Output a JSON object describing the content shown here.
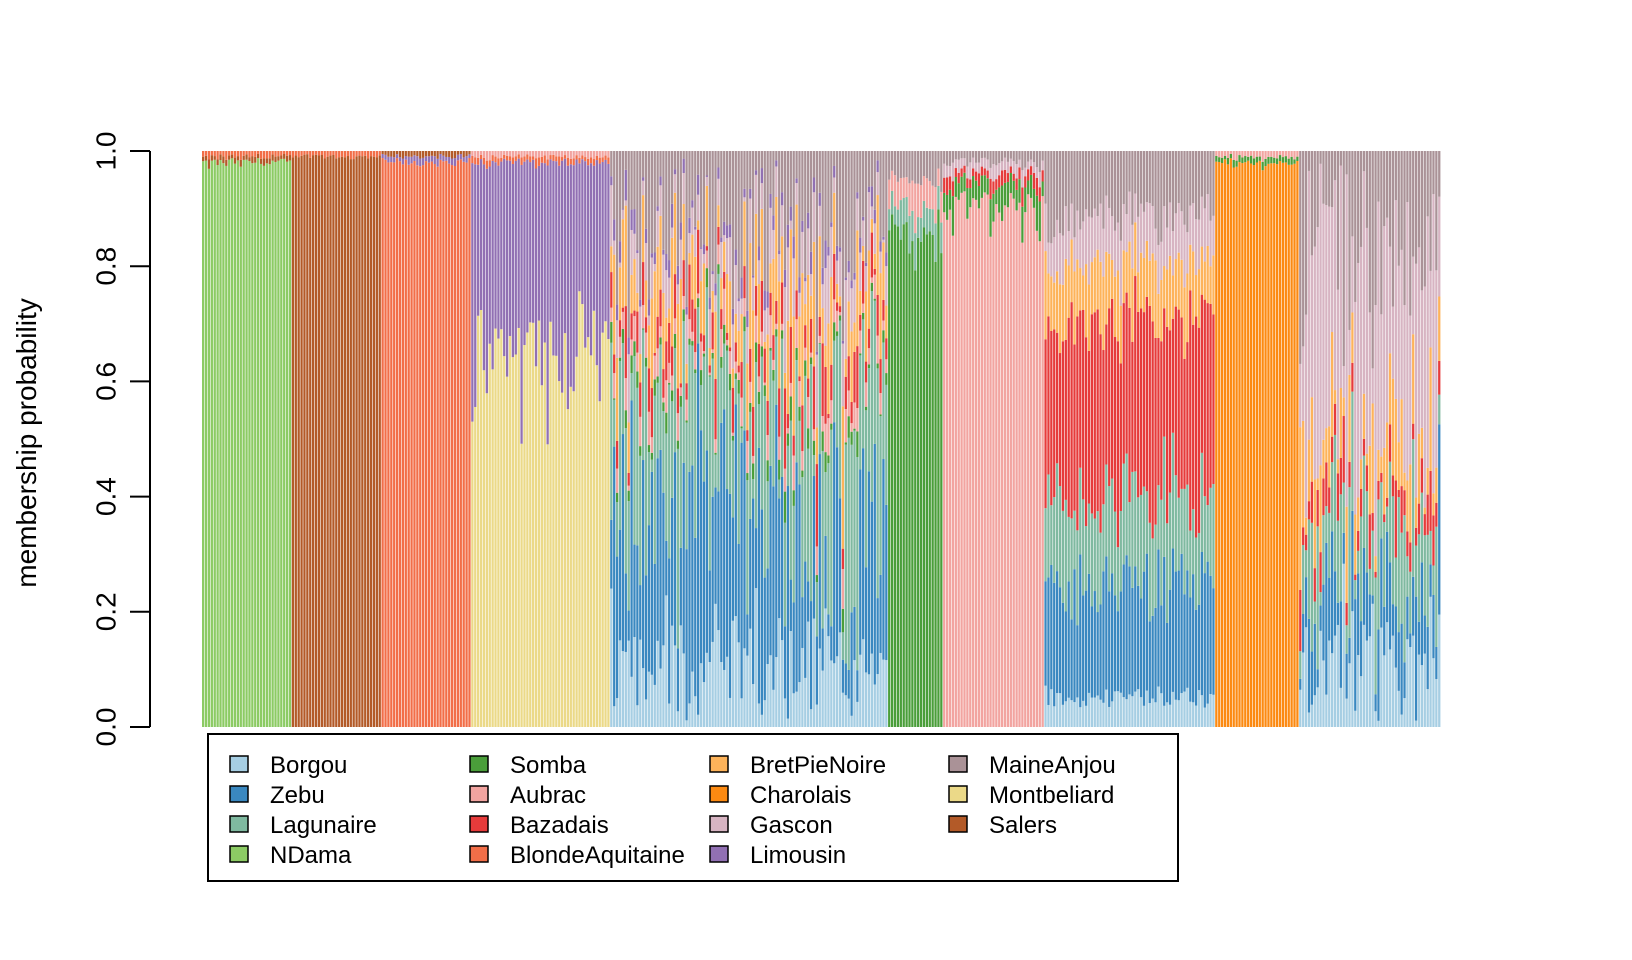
{
  "chart_data": {
    "type": "bar",
    "subtype": "stacked-membership",
    "ylabel": "membership probability",
    "xlabel": "",
    "ylim": [
      0,
      1
    ],
    "yticks": [
      "0.0",
      "0.2",
      "0.4",
      "0.6",
      "0.8",
      "1.0"
    ],
    "grid": false,
    "legend_position": "bottom-left",
    "clusters": [
      {
        "name": "Borgou",
        "color": "#A6CEE3"
      },
      {
        "name": "Zebu",
        "color": "#3A88C0"
      },
      {
        "name": "Lagunaire",
        "color": "#7FB9A0"
      },
      {
        "name": "NDama",
        "color": "#8CCB64"
      },
      {
        "name": "Somba",
        "color": "#4A9E3A"
      },
      {
        "name": "Aubrac",
        "color": "#F2A4A0"
      },
      {
        "name": "Bazadais",
        "color": "#E63B3B"
      },
      {
        "name": "BlondeAquitaine",
        "color": "#F26E48"
      },
      {
        "name": "BretPieNoire",
        "color": "#FDB35A"
      },
      {
        "name": "Charolais",
        "color": "#FC8A12"
      },
      {
        "name": "Gascon",
        "color": "#D7B4C2"
      },
      {
        "name": "Limousin",
        "color": "#9170B3"
      },
      {
        "name": "MaineAnjou",
        "color": "#AA9297"
      },
      {
        "name": "Montbeliard",
        "color": "#EBD988"
      },
      {
        "name": "Salers",
        "color": "#B35A28"
      }
    ],
    "groups": [
      {
        "n": 31,
        "main": "NDama",
        "p": {
          "NDama": 0.98,
          "Salers": 0.01,
          "BlondeAquitaine": 0.01
        }
      },
      {
        "n": 31,
        "main": "Salers",
        "p": {
          "Salers": 0.99,
          "BlondeAquitaine": 0.01
        }
      },
      {
        "n": 31,
        "main": "BlondeAquitaine",
        "p": {
          "BlondeAquitaine": 0.98,
          "Limousin": 0.01,
          "Salers": 0.01
        }
      },
      {
        "n": 48,
        "main": "Montbeliard",
        "p": {
          "Montbeliard": 0.64,
          "Limousin": 0.34,
          "BlondeAquitaine": 0.01,
          "Aubrac": 0.01
        }
      },
      {
        "n": 96,
        "main": "mixed",
        "p": {
          "Borgou": 0.1,
          "Zebu": 0.28,
          "Lagunaire": 0.2,
          "Somba": 0.02,
          "Aubrac": 0.03,
          "Bazadais": 0.05,
          "BretPieNoire": 0.1,
          "Gascon": 0.05,
          "Limousin": 0.02,
          "MaineAnjou": 0.15
        }
      },
      {
        "n": 19,
        "main": "Somba",
        "p": {
          "Somba": 0.85,
          "Lagunaire": 0.05,
          "Aubrac": 0.05,
          "MaineAnjou": 0.05
        }
      },
      {
        "n": 35,
        "main": "Aubrac",
        "p": {
          "Aubrac": 0.9,
          "Somba": 0.04,
          "Bazadais": 0.02,
          "Gascon": 0.02,
          "MaineAnjou": 0.02
        }
      },
      {
        "n": 59,
        "main": "Bazadais",
        "p": {
          "Borgou": 0.05,
          "Zebu": 0.2,
          "Lagunaire": 0.15,
          "Bazadais": 0.3,
          "BretPieNoire": 0.1,
          "Gascon": 0.08,
          "MaineAnjou": 0.12
        }
      },
      {
        "n": 29,
        "main": "Charolais",
        "p": {
          "Charolais": 0.98,
          "Somba": 0.01,
          "Aubrac": 0.01
        }
      },
      {
        "n": 49,
        "main": "mixed",
        "p": {
          "Borgou": 0.1,
          "Zebu": 0.12,
          "Lagunaire": 0.15,
          "Bazadais": 0.05,
          "BretPieNoire": 0.1,
          "Gascon": 0.3,
          "MaineAnjou": 0.18
        }
      }
    ]
  },
  "legend": {
    "items": [
      {
        "label": "Borgou",
        "color": "#A6CEE3"
      },
      {
        "label": "Zebu",
        "color": "#3A88C0"
      },
      {
        "label": "Lagunaire",
        "color": "#7FB9A0"
      },
      {
        "label": "NDama",
        "color": "#8CCB64"
      },
      {
        "label": "Somba",
        "color": "#4A9E3A"
      },
      {
        "label": "Aubrac",
        "color": "#F2A4A0"
      },
      {
        "label": "Bazadais",
        "color": "#E63B3B"
      },
      {
        "label": "BlondeAquitaine",
        "color": "#F26E48"
      },
      {
        "label": "BretPieNoire",
        "color": "#FDB35A"
      },
      {
        "label": "Charolais",
        "color": "#FC8A12"
      },
      {
        "label": "Gascon",
        "color": "#D7B4C2"
      },
      {
        "label": "Limousin",
        "color": "#9170B3"
      },
      {
        "label": "MaineAnjou",
        "color": "#AA9297"
      },
      {
        "label": "Montbeliard",
        "color": "#EBD988"
      },
      {
        "label": "Salers",
        "color": "#B35A28"
      }
    ]
  }
}
